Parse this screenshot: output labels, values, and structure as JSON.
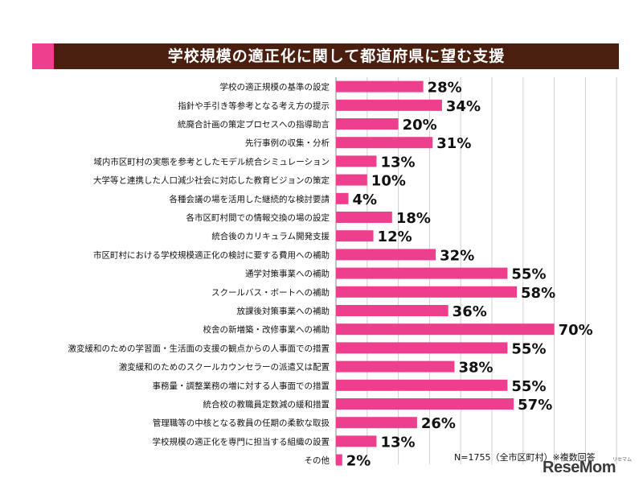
{
  "title": "学校規模の適正化に関して都道府県に望む支援",
  "colors": {
    "bar": "#ee3f8f",
    "title_bg": "#4a1f10",
    "accent": "#ee3f8f",
    "grid": "#cfcfcf"
  },
  "footnote": "N=1755（全市区町村）※複数回答",
  "logo": {
    "text": "ReseMom",
    "sub": "リセマム"
  },
  "chart_data": {
    "type": "bar",
    "orientation": "horizontal",
    "categories": [
      "学校の適正規模の基準の設定",
      "指針や手引き等参考となる考え方の提示",
      "統廃合計画の策定プロセスへの指導助言",
      "先行事例の収集・分析",
      "域内市区町村の実態を参考としたモデル統合シミュレーション",
      "大学等と連携した人口減少社会に対応した教育ビジョンの策定",
      "各種会議の場を活用した継続的な検討要請",
      "各市区町村間での情報交換の場の設定",
      "統合後のカリキュラム開発支援",
      "市区町村における学校規模適正化の検討に要する費用への補助",
      "通学対策事業への補助",
      "スクールバス・ボートへの補助",
      "放課後対策事業への補助",
      "校舎の新増築・改修事業への補助",
      "激変緩和のための学習面・生活面の支援の観点からの人事面での措置",
      "激変緩和のためのスクールカウンセラーの派遣又は配置",
      "事務量・調整業務の増に対する人事面での措置",
      "統合校の教職員定数減の緩和措置",
      "管理職等の中核となる教員の任期の柔軟な取扱",
      "学校規模の適正化を専門に担当する組織の設置",
      "その他"
    ],
    "values": [
      28,
      34,
      20,
      31,
      13,
      10,
      4,
      18,
      12,
      32,
      55,
      58,
      36,
      70,
      55,
      38,
      55,
      57,
      26,
      13,
      2
    ],
    "value_labels": [
      "28%",
      "34%",
      "20%",
      "31%",
      "13%",
      "10%",
      "4%",
      "18%",
      "12%",
      "32%",
      "55%",
      "58%",
      "36%",
      "70%",
      "55%",
      "38%",
      "55%",
      "57%",
      "26%",
      "13%",
      "2%"
    ],
    "xlim": [
      0,
      100
    ],
    "grid": true,
    "title": "学校規模の適正化に関して都道府県に望む支援",
    "xlabel": "",
    "ylabel": ""
  }
}
